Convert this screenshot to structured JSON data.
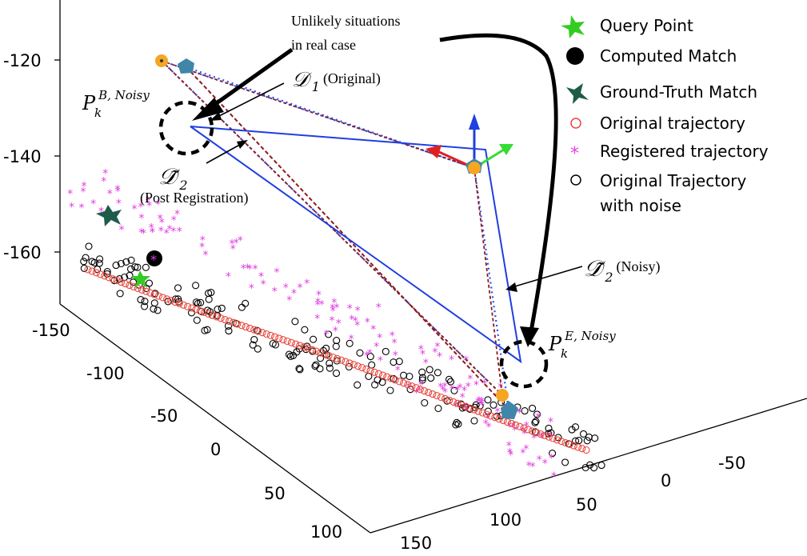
{
  "chart_data": {
    "type": "scatter",
    "projection": "3d",
    "axes": {
      "z_ticks": [
        "-120",
        "-140",
        "-160"
      ],
      "x_ticks": [
        "-150",
        "-100",
        "-50",
        "0",
        "50",
        "100"
      ],
      "y_ticks": [
        "150",
        "100",
        "50",
        "0",
        "-50"
      ],
      "z_range": [
        -170,
        -108
      ],
      "x_range": [
        -160,
        110
      ],
      "y_range": [
        -60,
        160
      ],
      "grid": false
    },
    "legend": {
      "placement": "top-right",
      "entries": [
        {
          "label": "Query Point",
          "marker": "star",
          "color": "#33cc22"
        },
        {
          "label": "Computed Match",
          "marker": "filled-circle",
          "color": "#000000"
        },
        {
          "label": "Ground-Truth Match",
          "marker": "star",
          "color": "#1d5c4a"
        },
        {
          "label": "Original trajectory",
          "marker": "circle",
          "color": "#e8463c"
        },
        {
          "label": "Registered trajectory",
          "marker": "asterisk",
          "color": "#e040e0"
        },
        {
          "label": "Original Trajectory",
          "label2": "with noise",
          "marker": "circle",
          "color": "#000000"
        }
      ]
    },
    "annotations": {
      "unlikely_line1": "Unlikely situations",
      "unlikely_line2": "in real case",
      "d1_symbol": "𝒟",
      "d1_sub": "1",
      "d1_note": "(Original)",
      "d2_symbol": "𝒟̃",
      "d2_sub": "2",
      "d2_note": "(Post Registration)",
      "d2n_symbol": "𝒟̃",
      "d2n_sub": "2",
      "d2n_note": "(Noisy)",
      "pb_base": "P",
      "pb_sup": "B, Noisy",
      "pb_sub": "k",
      "pe_base": "P",
      "pe_sup": "E, Noisy",
      "pe_sub": "k"
    },
    "colors": {
      "original": "#e8463c",
      "registered": "#e040e0",
      "noisy": "#000000",
      "blue_line": "#1f3fe0",
      "dark_red_line": "#8b1a1a",
      "dotted_blue": "#2a4ff0",
      "orange_marker": "#f5a623",
      "hex_marker": "#3f86a8",
      "query": "#33cc22",
      "ground_truth": "#1d5c4a"
    }
  }
}
